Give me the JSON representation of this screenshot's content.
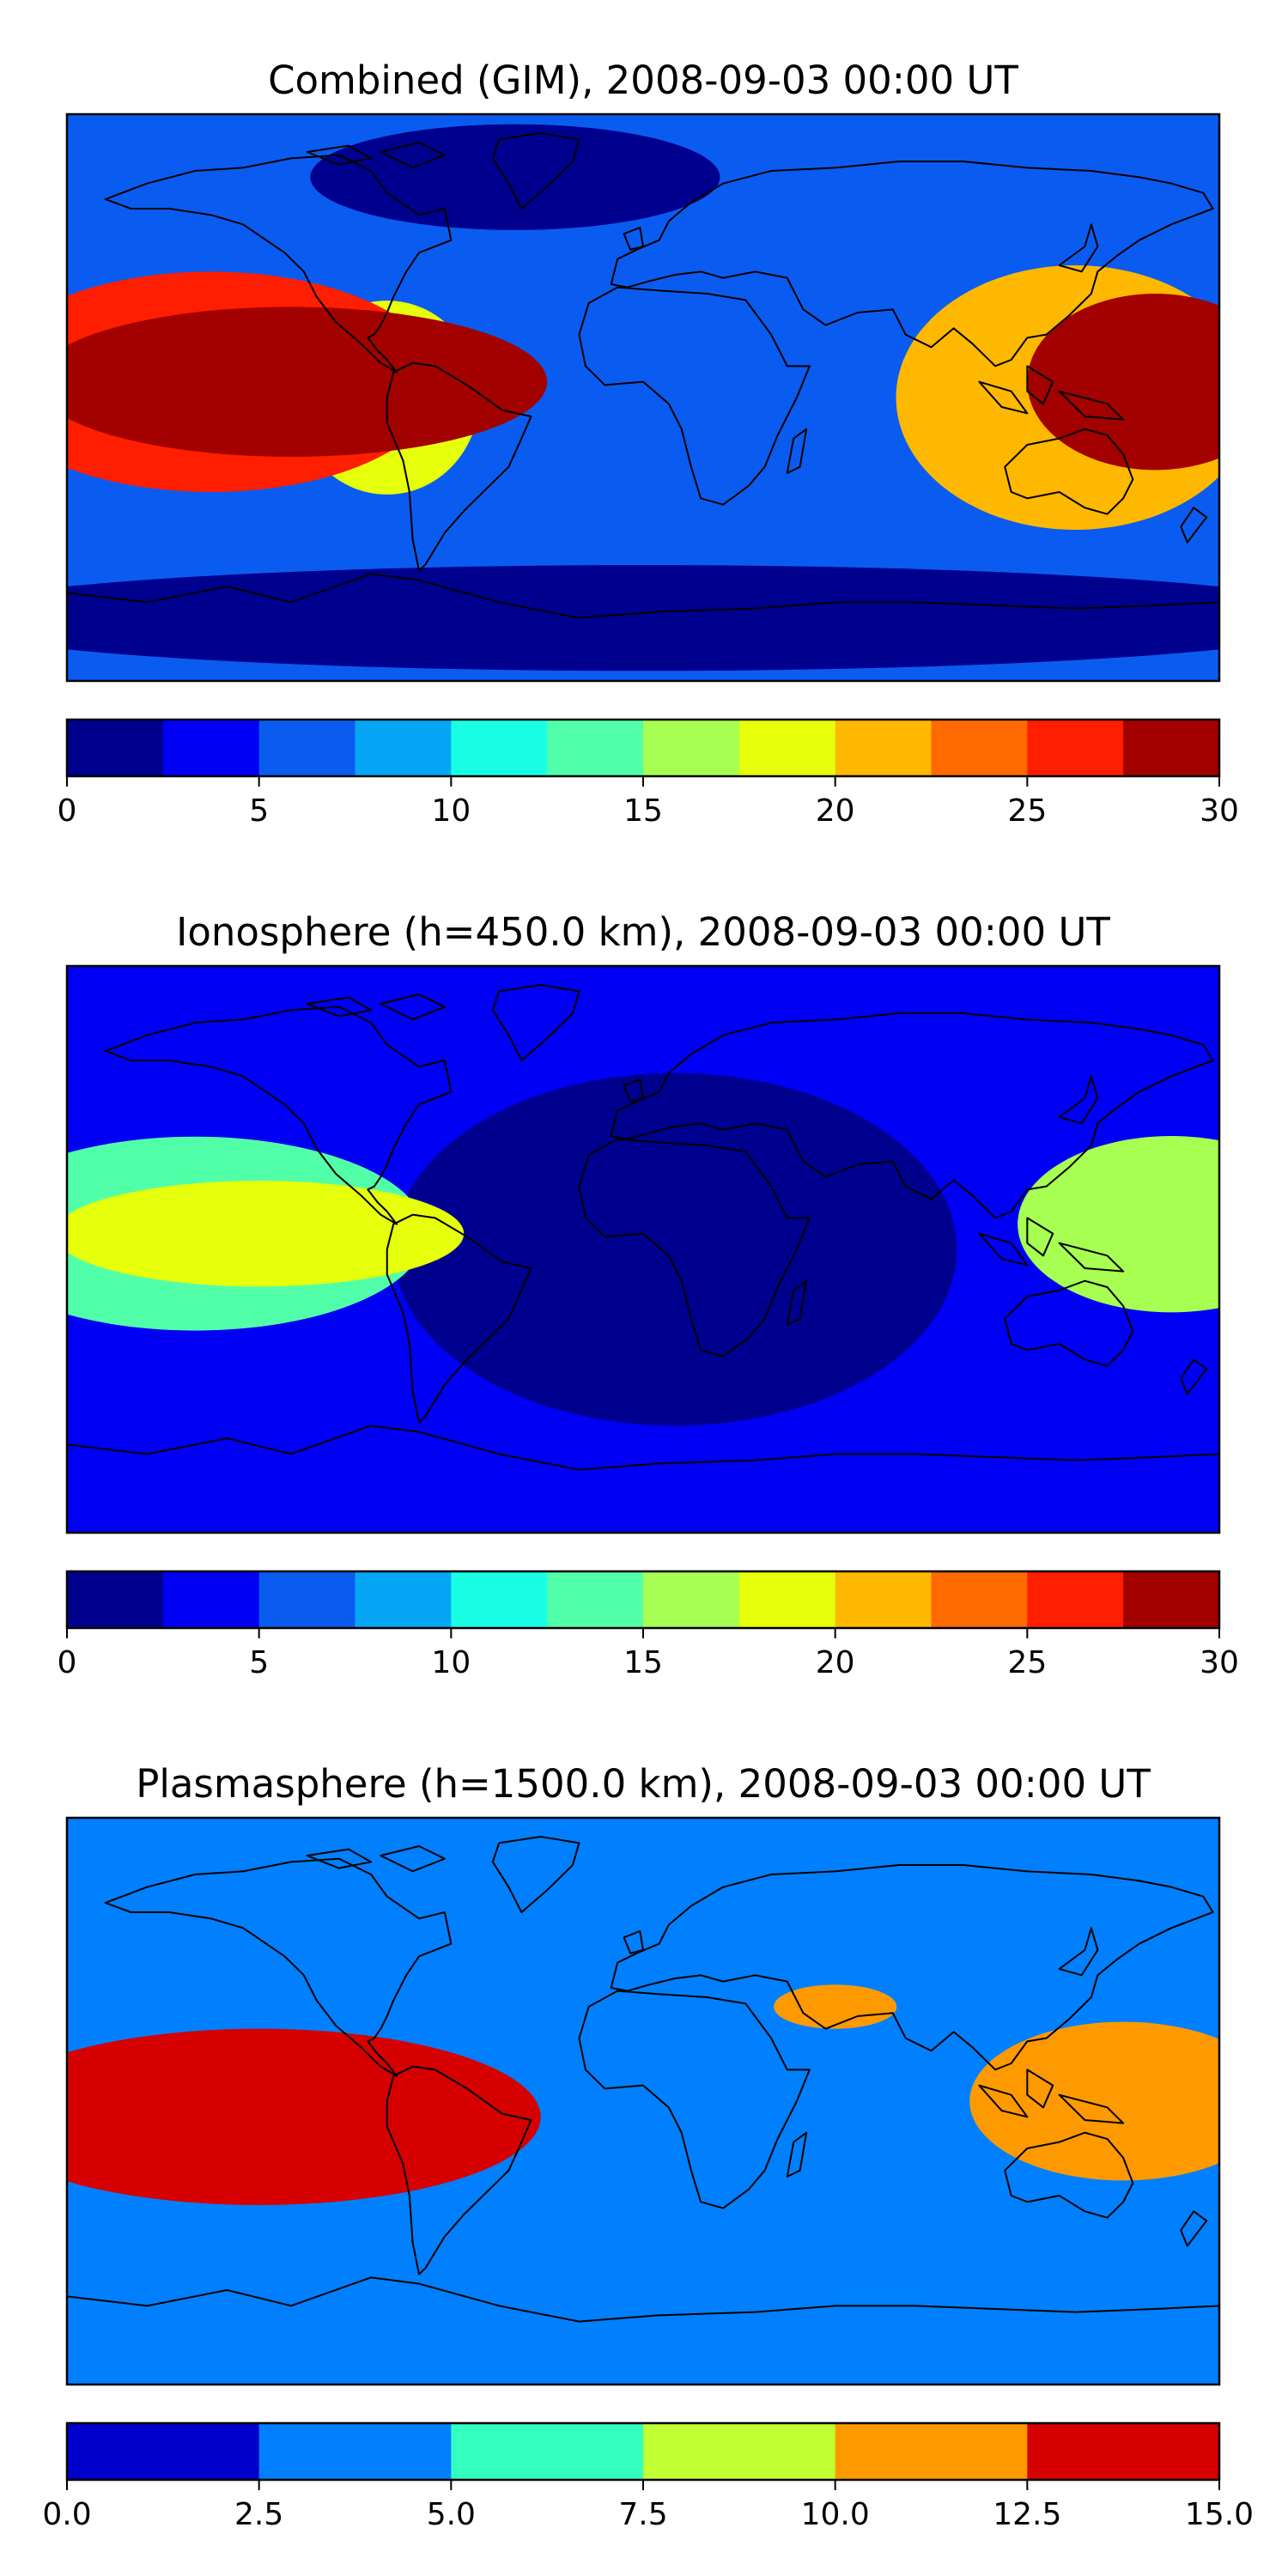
{
  "panels": [
    {
      "title": "Combined (GIM), 2008-09-03 00:00 UT",
      "colorbar": {
        "vmin": 0,
        "vmax": 30,
        "colors": [
          "#00008f",
          "#0000f5",
          "#0a5cf0",
          "#05a6f5",
          "#19ffe6",
          "#51ffa9",
          "#a6ff51",
          "#e6ff0a",
          "#ffb800",
          "#ff6a00",
          "#ff1e00",
          "#a30000"
        ],
        "ticks": [
          0,
          5,
          10,
          15,
          20,
          25,
          30
        ],
        "tick_labels": [
          "0",
          "5",
          "10",
          "15",
          "20",
          "25",
          "30"
        ]
      },
      "features": [
        {
          "lon": -110,
          "lat": 5,
          "sx": 50,
          "sy": 17,
          "level": 12
        },
        {
          "lon": -135,
          "lat": 5,
          "sx": 45,
          "sy": 25,
          "level": 8
        },
        {
          "lon": -80,
          "lat": 0,
          "sx": 18,
          "sy": 22,
          "level": 5
        },
        {
          "lon": 160,
          "lat": 5,
          "sx": 25,
          "sy": 20,
          "level": 10
        },
        {
          "lon": 135,
          "lat": 0,
          "sx": 35,
          "sy": 30,
          "level": 6
        },
        {
          "lon": -40,
          "lat": 70,
          "sx": 40,
          "sy": 12,
          "level": -2
        },
        {
          "lon": 0,
          "lat": -70,
          "sx": 140,
          "sy": 12,
          "level": -3
        }
      ],
      "base": 2.2
    },
    {
      "title": "Ionosphere  (h=450.0 km), 2008-09-03 00:00 UT",
      "colorbar": {
        "vmin": 0,
        "vmax": 30,
        "colors": [
          "#00008f",
          "#0000f5",
          "#0a5cf0",
          "#05a6f5",
          "#19ffe6",
          "#51ffa9",
          "#a6ff51",
          "#e6ff0a",
          "#ffb800",
          "#ff6a00",
          "#ff1e00",
          "#a30000"
        ],
        "ticks": [
          0,
          5,
          10,
          15,
          20,
          25,
          30
        ],
        "tick_labels": [
          "0",
          "5",
          "10",
          "15",
          "20",
          "25",
          "30"
        ]
      },
      "features": [
        {
          "lon": -120,
          "lat": 5,
          "sx": 40,
          "sy": 12,
          "level": 5
        },
        {
          "lon": -140,
          "lat": 5,
          "sx": 45,
          "sy": 22,
          "level": 3
        },
        {
          "lon": 165,
          "lat": 8,
          "sx": 30,
          "sy": 20,
          "level": 4
        },
        {
          "lon": 10,
          "lat": 0,
          "sx": 55,
          "sy": 40,
          "level": -2
        },
        {
          "lon": 0,
          "lat": -75,
          "sx": 140,
          "sy": 10,
          "level": -1
        }
      ],
      "base": 1.6
    },
    {
      "title": "Plasmasphere (h=1500.0 km), 2008-09-03 00:00 UT",
      "colorbar": {
        "vmin": 0,
        "vmax": 15,
        "colors": [
          "#0000cc",
          "#0080ff",
          "#33ffbf",
          "#bfff33",
          "#ff9900",
          "#d60000"
        ],
        "ticks": [
          0,
          2.5,
          5,
          7.5,
          10,
          12.5,
          15
        ],
        "tick_labels": [
          "0.0",
          "2.5",
          "5.0",
          "7.5",
          "10.0",
          "12.5",
          "15.0"
        ]
      },
      "features": [
        {
          "lon": -120,
          "lat": -5,
          "sx": 30,
          "sy": 12,
          "level": 7
        },
        {
          "lon": -120,
          "lat": -5,
          "sx": 55,
          "sy": 20,
          "level": 5
        },
        {
          "lon": 150,
          "lat": 0,
          "sx": 30,
          "sy": 18,
          "level": 2.5
        },
        {
          "lon": 60,
          "lat": 30,
          "sx": 12,
          "sy": 5,
          "level": 2
        }
      ],
      "base": 1.5
    }
  ]
}
